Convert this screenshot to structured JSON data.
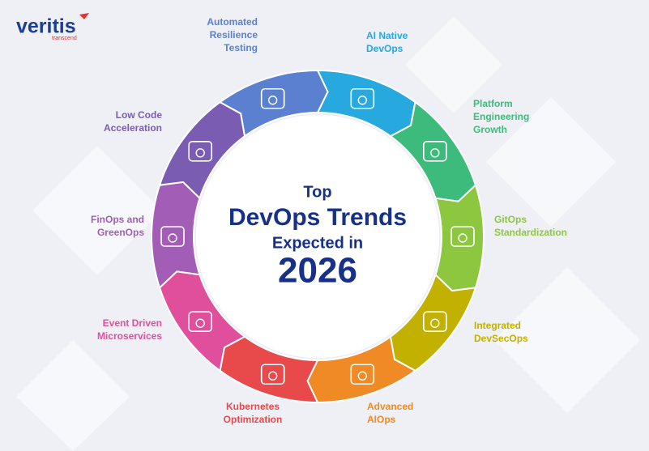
{
  "logo": {
    "name": "veritis",
    "tagline": "transcend"
  },
  "title": {
    "line1": "Top",
    "line2": "DevOps Trends",
    "line3": "Expected in",
    "line4": "2026"
  },
  "trends": [
    {
      "label": [
        "AI Native",
        "DevOps"
      ],
      "color": "#27a8df"
    },
    {
      "label": [
        "Platform",
        "Engineering",
        "Growth"
      ],
      "color": "#3dbb7c"
    },
    {
      "label": [
        "GitOps",
        "Standardization"
      ],
      "color": "#8dc63f"
    },
    {
      "label": [
        "Integrated",
        "DevSecOps"
      ],
      "color": "#c2b100"
    },
    {
      "label": [
        "Advanced",
        "AIOps"
      ],
      "color": "#ef8a25"
    },
    {
      "label": [
        "Kubernetes",
        "Optimization"
      ],
      "color": "#e84a4c"
    },
    {
      "label": [
        "Event Driven",
        "Microservices"
      ],
      "color": "#df4f9c"
    },
    {
      "label": [
        "FinOps and",
        "GreenOps"
      ],
      "color": "#a25db6"
    },
    {
      "label": [
        "Low Code",
        "Acceleration"
      ],
      "color": "#7a5cb2"
    },
    {
      "label": [
        "Automated",
        "Resilience",
        "Testing"
      ],
      "color": "#5a80cf"
    }
  ]
}
